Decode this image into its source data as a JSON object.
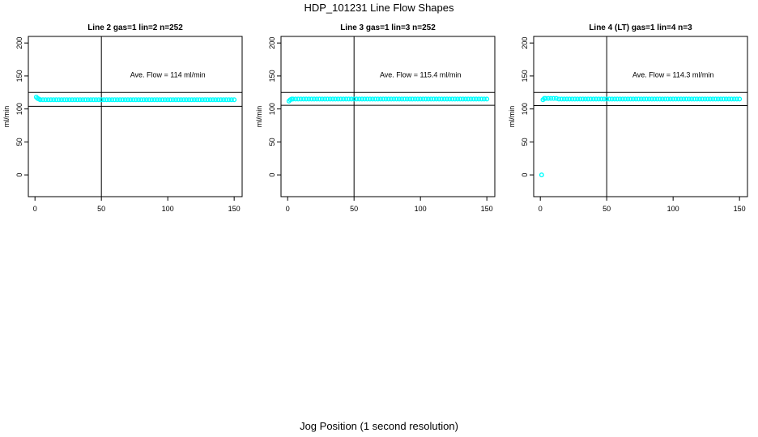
{
  "title": "HDP_101231  Line Flow Shapes",
  "xlabel": "Jog Position (1 second resolution)",
  "chart_data": [
    {
      "type": "scatter",
      "title": "Line 2 gas=1 lin=2 n=252",
      "ylabel": "ml/min",
      "annotation": "Ave. Flow =  114  ml/min",
      "xlim": [
        -5,
        156
      ],
      "ylim": [
        -33,
        210
      ],
      "xticks": [
        0,
        50,
        100,
        150
      ],
      "yticks": [
        0,
        50,
        100,
        150,
        200
      ],
      "hlines": [
        125,
        104
      ],
      "vline": 50,
      "color": "#00ffff",
      "x": [
        1,
        2,
        3,
        4,
        6,
        8,
        10,
        12,
        14,
        16,
        18,
        20,
        22,
        24,
        26,
        28,
        30,
        32,
        34,
        36,
        38,
        40,
        42,
        44,
        46,
        48,
        50,
        52,
        54,
        56,
        58,
        60,
        62,
        64,
        66,
        68,
        70,
        72,
        74,
        76,
        78,
        80,
        82,
        84,
        86,
        88,
        90,
        92,
        94,
        96,
        98,
        100,
        102,
        104,
        106,
        108,
        110,
        112,
        114,
        116,
        118,
        120,
        122,
        124,
        126,
        128,
        130,
        132,
        134,
        136,
        138,
        140,
        142,
        144,
        146,
        148,
        150
      ],
      "y": [
        118,
        116,
        115,
        114,
        114,
        114,
        114,
        114,
        114,
        114,
        114,
        114,
        114,
        114,
        114,
        114,
        114,
        114,
        114,
        114,
        114,
        114,
        114,
        114,
        114,
        114,
        114,
        114,
        114,
        114,
        114,
        114,
        114,
        114,
        114,
        114,
        114,
        114,
        114,
        114,
        114,
        114,
        114,
        114,
        114,
        114,
        114,
        114,
        114,
        114,
        114,
        114,
        114,
        114,
        114,
        114,
        114,
        114,
        114,
        114,
        114,
        114,
        114,
        114,
        114,
        114,
        114,
        114,
        114,
        114,
        114,
        114,
        114,
        114,
        114,
        114,
        114
      ]
    },
    {
      "type": "scatter",
      "title": "Line 3 gas=1 lin=3 n=252",
      "ylabel": "ml/min",
      "annotation": "Ave. Flow =  115.4  ml/min",
      "xlim": [
        -5,
        156
      ],
      "ylim": [
        -33,
        210
      ],
      "xticks": [
        0,
        50,
        100,
        150
      ],
      "yticks": [
        0,
        50,
        100,
        150,
        200
      ],
      "hlines": [
        125,
        105.5
      ],
      "vline": 50,
      "color": "#00ffff",
      "x": [
        1,
        2,
        3,
        4,
        6,
        8,
        10,
        12,
        14,
        16,
        18,
        20,
        22,
        24,
        26,
        28,
        30,
        32,
        34,
        36,
        38,
        40,
        42,
        44,
        46,
        48,
        50,
        52,
        54,
        56,
        58,
        60,
        62,
        64,
        66,
        68,
        70,
        72,
        74,
        76,
        78,
        80,
        82,
        84,
        86,
        88,
        90,
        92,
        94,
        96,
        98,
        100,
        102,
        104,
        106,
        108,
        110,
        112,
        114,
        116,
        118,
        120,
        122,
        124,
        126,
        128,
        130,
        132,
        134,
        136,
        138,
        140,
        142,
        144,
        146,
        148,
        150
      ],
      "y": [
        112,
        114,
        115,
        115,
        115,
        115,
        115,
        115,
        115,
        115,
        115,
        115,
        115,
        115,
        115,
        115,
        115,
        115,
        115,
        115,
        115,
        115,
        115,
        115,
        115,
        115,
        115,
        115,
        115,
        115,
        115,
        115,
        115,
        115,
        115,
        115,
        115,
        115,
        115,
        115,
        115,
        115,
        115,
        115,
        115,
        115,
        115,
        115,
        115,
        115,
        115,
        115,
        115,
        115,
        115,
        115,
        115,
        115,
        115,
        115,
        115,
        115,
        115,
        115,
        115,
        115,
        115,
        115,
        115,
        115,
        115,
        115,
        115,
        115,
        115,
        115,
        115
      ]
    },
    {
      "type": "scatter",
      "title": "Line 4 (LT) gas=1 lin=4 n=3",
      "ylabel": "ml/min",
      "annotation": "Ave. Flow =  114.3  ml/min",
      "xlim": [
        -5,
        156
      ],
      "ylim": [
        -33,
        210
      ],
      "xticks": [
        0,
        50,
        100,
        150
      ],
      "yticks": [
        0,
        50,
        100,
        150,
        200
      ],
      "hlines": [
        125,
        105
      ],
      "vline": 50,
      "color": "#00ffff",
      "x": [
        1,
        2,
        3,
        4,
        6,
        8,
        10,
        12,
        14,
        16,
        18,
        20,
        22,
        24,
        26,
        28,
        30,
        32,
        34,
        36,
        38,
        40,
        42,
        44,
        46,
        48,
        50,
        52,
        54,
        56,
        58,
        60,
        62,
        64,
        66,
        68,
        70,
        72,
        74,
        76,
        78,
        80,
        82,
        84,
        86,
        88,
        90,
        92,
        94,
        96,
        98,
        100,
        102,
        104,
        106,
        108,
        110,
        112,
        114,
        116,
        118,
        120,
        122,
        124,
        126,
        128,
        130,
        132,
        134,
        136,
        138,
        140,
        142,
        144,
        146,
        148,
        150
      ],
      "y": [
        0,
        114,
        116,
        116,
        116,
        116,
        116,
        116,
        115,
        115,
        115,
        115,
        115,
        115,
        115,
        115,
        115,
        115,
        115,
        115,
        115,
        115,
        115,
        115,
        115,
        115,
        115,
        115,
        115,
        115,
        115,
        115,
        115,
        115,
        115,
        115,
        115,
        115,
        115,
        115,
        115,
        115,
        115,
        115,
        115,
        115,
        115,
        115,
        115,
        115,
        115,
        115,
        115,
        115,
        115,
        115,
        115,
        115,
        115,
        115,
        115,
        115,
        115,
        115,
        115,
        115,
        115,
        115,
        115,
        115,
        115,
        115,
        115,
        115,
        115,
        115,
        115
      ]
    }
  ]
}
